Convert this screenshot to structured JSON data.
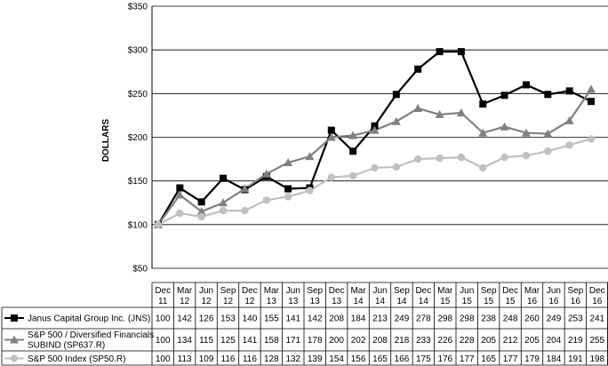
{
  "chart_data": {
    "type": "line",
    "title": "",
    "ylabel": "DOLLARS",
    "ylim": [
      50,
      350
    ],
    "yticks": [
      "$50",
      "$100",
      "$150",
      "$200",
      "$250",
      "$300",
      "$350"
    ],
    "ytick_values": [
      50,
      100,
      150,
      200,
      250,
      300,
      350
    ],
    "grid": true,
    "categories": [
      [
        "Dec",
        "11"
      ],
      [
        "Mar",
        "12"
      ],
      [
        "Jun",
        "12"
      ],
      [
        "Sep",
        "12"
      ],
      [
        "Dec",
        "12"
      ],
      [
        "Mar",
        "13"
      ],
      [
        "Jun",
        "13"
      ],
      [
        "Sep",
        "13"
      ],
      [
        "Dec",
        "13"
      ],
      [
        "Mar",
        "14"
      ],
      [
        "Jun",
        "14"
      ],
      [
        "Sep",
        "14"
      ],
      [
        "Dec",
        "14"
      ],
      [
        "Mar",
        "15"
      ],
      [
        "Jun",
        "15"
      ],
      [
        "Sep",
        "15"
      ],
      [
        "Dec",
        "15"
      ],
      [
        "Mar",
        "16"
      ],
      [
        "Jun",
        "16"
      ],
      [
        "Sep",
        "16"
      ],
      [
        "Dec",
        "16"
      ]
    ],
    "legend_placement": "table-below",
    "series": [
      {
        "name": "Janus Capital Group Inc. (JNS)",
        "label_lines": [
          "Janus Capital Group Inc. (JNS)"
        ],
        "color": "#000000",
        "marker": "square",
        "values": [
          100,
          142,
          126,
          153,
          140,
          155,
          141,
          142,
          208,
          184,
          213,
          249,
          278,
          298,
          298,
          238,
          248,
          260,
          249,
          253,
          241
        ]
      },
      {
        "name": "S&P 500 / Diversified Financials SUBIND (SP637.R)",
        "label_lines": [
          "S&P 500 / Diversified Financials",
          "SUBIND (SP637.R)"
        ],
        "color": "#808080",
        "marker": "triangle",
        "values": [
          100,
          134,
          115,
          125,
          141,
          158,
          171,
          178,
          200,
          202,
          208,
          218,
          233,
          226,
          228,
          205,
          212,
          205,
          204,
          219,
          255
        ]
      },
      {
        "name": "S&P 500 Index (SP50.R)",
        "label_lines": [
          "S&P 500 Index (SP50.R)"
        ],
        "color": "#c0c0c0",
        "marker": "circle",
        "values": [
          100,
          113,
          109,
          116,
          116,
          128,
          132,
          139,
          154,
          156,
          165,
          166,
          175,
          176,
          177,
          165,
          177,
          179,
          184,
          191,
          198
        ]
      }
    ]
  }
}
